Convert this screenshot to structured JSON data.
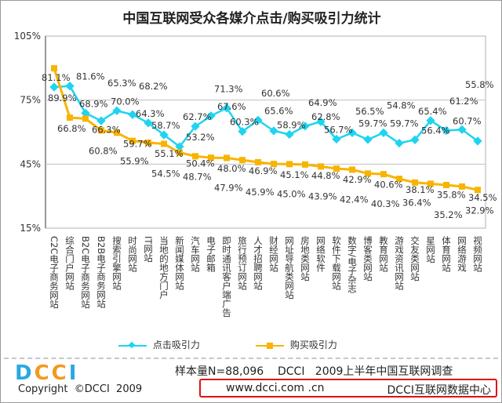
{
  "chart_data": {
    "type": "line",
    "title": "中国互联网受众各媒介点击/购买吸引力统计",
    "categories": [
      "C2C电子商务网站",
      "综合门户网站",
      "B2C电子商务网站",
      "B2B电子商务网站",
      "搜索引擎网站",
      "时尚网站",
      "IT网站",
      "当地的地方门户",
      "新闻媒体网站",
      "汽车网站",
      "电子邮箱",
      "即时通讯客户端广告",
      "旅行预订网站",
      "人才招聘网站",
      "财经网站",
      "网址导航类网站",
      "房地类网站",
      "网络软件",
      "软件下载网站",
      "数字/电子杂志",
      "博客类网站",
      "教育网站",
      "游戏资讯网站",
      "交友类网站",
      "星网站",
      "体育网站",
      "网络游戏",
      "视频网站"
    ],
    "series": [
      {
        "name": "点击吸引力",
        "color": "#1ed4f0",
        "marker": "diamond",
        "values": [
          81.1,
          81.6,
          68.9,
          65.3,
          70.0,
          68.2,
          64.3,
          58.7,
          53.2,
          62.7,
          67.6,
          71.3,
          60.3,
          65.6,
          60.6,
          58.9,
          62.8,
          64.9,
          56.7,
          59.7,
          56.5,
          59.7,
          54.8,
          56.4,
          65.4,
          60.7,
          61.2,
          55.8
        ]
      },
      {
        "name": "购买吸引力",
        "color": "#f8b400",
        "marker": "square",
        "values": [
          89.9,
          66.8,
          66.3,
          60.8,
          59.7,
          55.9,
          55.1,
          54.5,
          50.4,
          48.7,
          48.0,
          47.9,
          46.9,
          45.9,
          45.1,
          45.0,
          44.8,
          43.9,
          42.9,
          42.4,
          40.6,
          40.3,
          38.1,
          36.4,
          35.8,
          35.2,
          34.5,
          32.9
        ]
      }
    ],
    "ylim": [
      15,
      105
    ],
    "yticks": [
      "15%",
      "45%",
      "75%",
      "105%"
    ],
    "grid": true,
    "legend": "bottom"
  },
  "footer": {
    "logo": "DCCI",
    "sample": "样本量N=88,096    DCCI   2009上半年中国互联网调查",
    "copyright": "Copyright  ©DCCI  2009",
    "url": "www.dcci.com .cn",
    "center": "DCCI互联网数据中心"
  }
}
